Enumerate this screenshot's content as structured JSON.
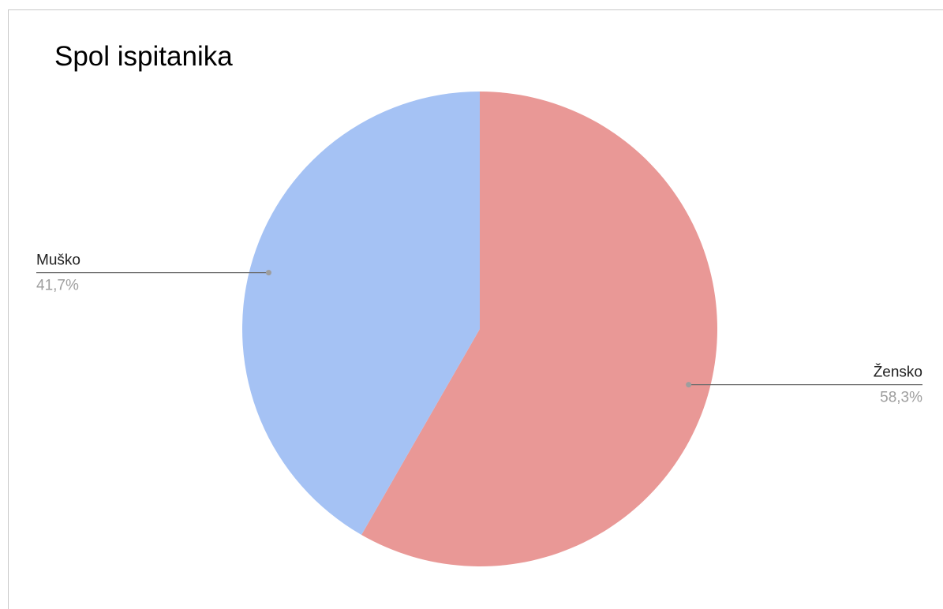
{
  "chart_data": {
    "type": "pie",
    "title": "Spol ispitanika",
    "slices": [
      {
        "label": "Žensko",
        "value": 58.3,
        "percent_label": "58,3%",
        "color": "#e99896"
      },
      {
        "label": "Muško",
        "value": 41.7,
        "percent_label": "41,7%",
        "color": "#a5c2f4"
      }
    ],
    "start_angle": "12 o'clock",
    "direction": "clockwise",
    "legend": "none",
    "label_style": "leader-lines"
  },
  "colors": {
    "leader_line": "#6b6b6b",
    "leader_dot": "#9e9e9e",
    "percent_text": "#9e9e9e"
  }
}
